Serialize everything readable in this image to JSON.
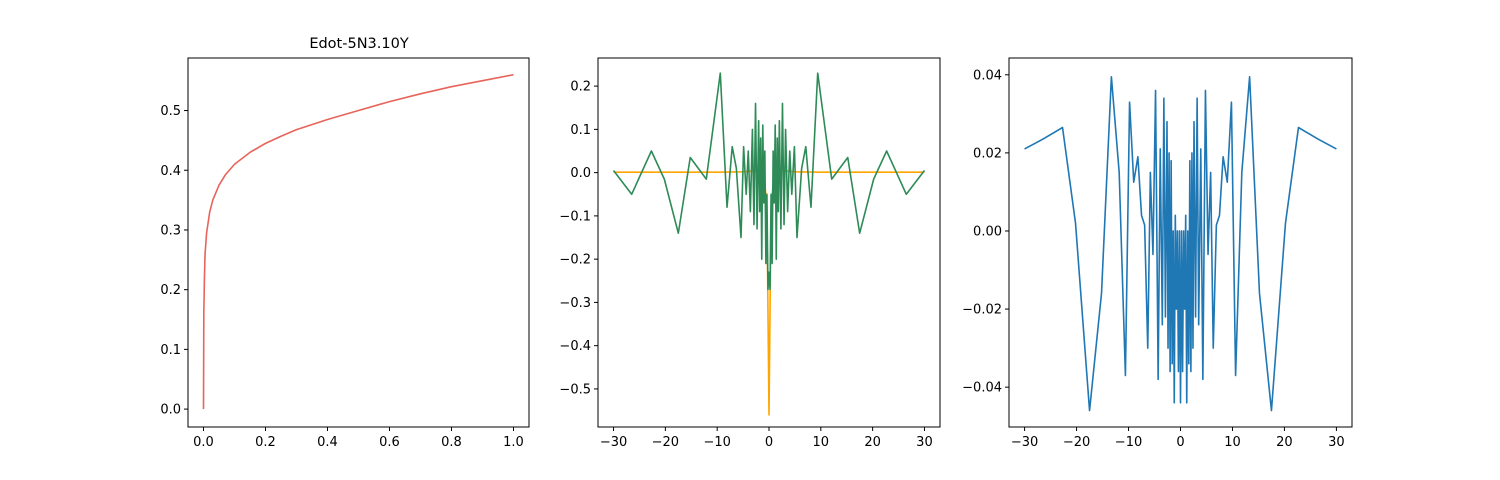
{
  "figure": {
    "background": "#ffffff"
  },
  "chart_data": [
    {
      "type": "line",
      "title": "Edot-5N3.10Y",
      "xlim": [
        -0.05,
        1.05
      ],
      "ylim": [
        -0.03,
        0.588
      ],
      "xticks": [
        0.0,
        0.2,
        0.4,
        0.6,
        0.8,
        1.0
      ],
      "xtick_labels": [
        "0.0",
        "0.2",
        "0.4",
        "0.6",
        "0.8",
        "1.0"
      ],
      "yticks": [
        0.0,
        0.1,
        0.2,
        0.3,
        0.4,
        0.5
      ],
      "ytick_labels": [
        "0.0",
        "0.1",
        "0.2",
        "0.3",
        "0.4",
        "0.5"
      ],
      "grid": false,
      "series": [
        {
          "color": "#e8645a",
          "x": [
            0.0,
            0.001,
            0.003,
            0.005,
            0.01,
            0.02,
            0.03,
            0.05,
            0.07,
            0.1,
            0.15,
            0.2,
            0.25,
            0.3,
            0.4,
            0.5,
            0.6,
            0.7,
            0.8,
            0.9,
            1.0
          ],
          "y": [
            0.0,
            0.16,
            0.22,
            0.26,
            0.295,
            0.33,
            0.35,
            0.375,
            0.392,
            0.41,
            0.43,
            0.445,
            0.457,
            0.468,
            0.485,
            0.5,
            0.515,
            0.528,
            0.54,
            0.55,
            0.56
          ]
        }
      ]
    },
    {
      "type": "line",
      "title": "",
      "xlim": [
        -33,
        33
      ],
      "ylim": [
        -0.588,
        0.265
      ],
      "xticks": [
        -30,
        -20,
        -10,
        0,
        10,
        20,
        30
      ],
      "xtick_labels": [
        "−30",
        "−20",
        "−10",
        "0",
        "10",
        "20",
        "30"
      ],
      "yticks": [
        -0.5,
        -0.4,
        -0.3,
        -0.2,
        -0.1,
        0.0,
        0.1,
        0.2
      ],
      "ytick_labels": [
        "−0.5",
        "−0.4",
        "−0.3",
        "−0.2",
        "−0.1",
        "0.0",
        "0.1",
        "0.2"
      ],
      "grid": false,
      "series": [
        {
          "color": "#ffa500",
          "x": [
            -30,
            -20,
            -10,
            -5,
            -3,
            -2,
            -1.5,
            -1,
            -0.6,
            -0.3,
            0,
            0.3,
            0.6,
            1,
            1.5,
            2,
            3,
            5,
            10,
            20,
            30
          ],
          "y": [
            0.001,
            0.001,
            0.001,
            0.002,
            0.004,
            0.006,
            0.002,
            -0.01,
            -0.05,
            -0.2,
            -0.56,
            -0.2,
            -0.05,
            -0.01,
            0.002,
            0.006,
            0.004,
            0.002,
            0.001,
            0.001,
            0.001
          ]
        },
        {
          "color": "#2e8b57",
          "x": [
            -30,
            -26.5,
            -22.7,
            -20.2,
            -17.5,
            -15.2,
            -12.1,
            -9.4,
            -8.1,
            -7.1,
            -6.3,
            -5.4,
            -4.9,
            -4.4,
            -4.0,
            -3.6,
            -3.2,
            -2.9,
            -2.6,
            -2.3,
            -2.0,
            -1.8,
            -1.6,
            -1.4,
            -1.2,
            -1.0,
            -0.8,
            -0.6,
            -0.4,
            -0.2,
            0.0,
            0.2,
            0.4,
            0.6,
            0.8,
            1.0,
            1.2,
            1.4,
            1.6,
            1.8,
            2.0,
            2.3,
            2.6,
            2.9,
            3.2,
            3.6,
            4.0,
            4.4,
            4.9,
            5.4,
            6.3,
            7.1,
            8.1,
            9.4,
            12.1,
            15.2,
            17.5,
            20.2,
            22.7,
            26.5,
            30
          ],
          "y": [
            0.005,
            -0.05,
            0.05,
            -0.015,
            -0.14,
            0.035,
            -0.015,
            0.23,
            -0.08,
            0.06,
            0.01,
            -0.15,
            0.06,
            -0.05,
            0.05,
            -0.09,
            0.1,
            -0.12,
            0.16,
            -0.13,
            0.12,
            -0.09,
            0.08,
            -0.2,
            0.11,
            -0.07,
            0.05,
            -0.21,
            -0.05,
            -0.27,
            -0.23,
            -0.27,
            -0.05,
            -0.21,
            0.05,
            -0.07,
            0.11,
            -0.2,
            0.08,
            -0.09,
            0.12,
            -0.13,
            0.16,
            -0.12,
            0.1,
            -0.09,
            0.05,
            -0.05,
            0.06,
            -0.15,
            0.01,
            0.06,
            -0.08,
            0.23,
            -0.015,
            0.035,
            -0.14,
            -0.015,
            0.05,
            -0.05,
            0.005
          ]
        }
      ]
    },
    {
      "type": "line",
      "title": "",
      "xlim": [
        -33,
        33
      ],
      "ylim": [
        -0.0502,
        0.0443
      ],
      "xticks": [
        -30,
        -20,
        -10,
        0,
        10,
        20,
        30
      ],
      "xtick_labels": [
        "−30",
        "−20",
        "−10",
        "0",
        "10",
        "20",
        "30"
      ],
      "yticks": [
        -0.04,
        -0.02,
        0.0,
        0.02,
        0.04
      ],
      "ytick_labels": [
        "−0.04",
        "−0.02",
        "0.00",
        "0.02",
        "0.04"
      ],
      "grid": false,
      "series": [
        {
          "color": "#1f77b4",
          "x": [
            -30,
            -26.5,
            -22.7,
            -20.2,
            -17.5,
            -15.2,
            -13.3,
            -11.8,
            -10.6,
            -9.8,
            -9.0,
            -8.2,
            -7.5,
            -6.9,
            -6.3,
            -5.8,
            -5.3,
            -4.8,
            -4.3,
            -3.9,
            -3.5,
            -3.2,
            -2.9,
            -2.6,
            -2.4,
            -2.2,
            -2.0,
            -1.8,
            -1.6,
            -1.4,
            -1.2,
            -1.0,
            -0.8,
            -0.6,
            -0.4,
            -0.2,
            0.0,
            0.2,
            0.4,
            0.6,
            0.8,
            1.0,
            1.2,
            1.4,
            1.6,
            1.8,
            2.0,
            2.2,
            2.4,
            2.6,
            2.9,
            3.2,
            3.5,
            3.9,
            4.3,
            4.8,
            5.3,
            5.8,
            6.3,
            6.9,
            7.5,
            8.2,
            9.0,
            9.8,
            10.6,
            11.8,
            13.3,
            15.2,
            17.5,
            20.2,
            22.7,
            26.5,
            30
          ],
          "y": [
            0.021,
            0.0235,
            0.0265,
            0.002,
            -0.046,
            -0.016,
            0.0395,
            0.015,
            -0.037,
            0.033,
            0.0125,
            0.019,
            0.004,
            0.0015,
            -0.03,
            0.015,
            -0.006,
            0.036,
            -0.038,
            0.021,
            -0.024,
            0.034,
            -0.022,
            0.028,
            -0.03,
            0.02,
            -0.036,
            0.018,
            -0.034,
            0.0,
            -0.044,
            0.004,
            -0.02,
            0.0,
            -0.036,
            0.0,
            -0.044,
            0.0,
            -0.036,
            0.0,
            -0.02,
            0.004,
            -0.044,
            0.0,
            -0.034,
            0.018,
            -0.036,
            0.02,
            -0.03,
            0.028,
            -0.022,
            0.034,
            -0.024,
            0.021,
            -0.038,
            0.036,
            -0.006,
            0.015,
            -0.03,
            0.0015,
            0.004,
            0.019,
            0.0125,
            0.033,
            -0.037,
            0.015,
            0.0395,
            -0.016,
            -0.046,
            0.002,
            0.0265,
            0.0235,
            0.021
          ]
        }
      ]
    }
  ]
}
